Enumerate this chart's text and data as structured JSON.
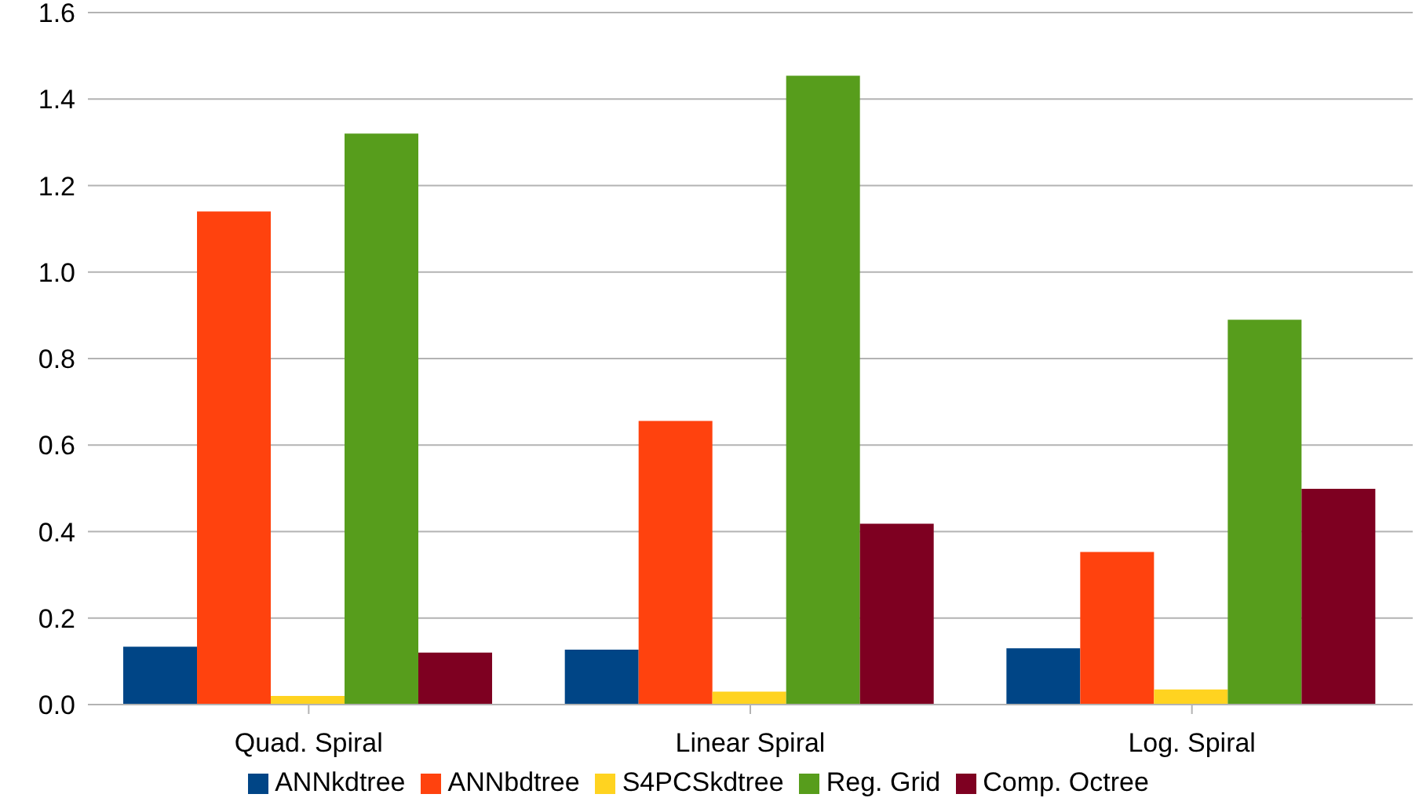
{
  "chart_data": {
    "type": "bar",
    "categories": [
      "Quad. Spiral",
      "Linear Spiral",
      "Log. Spiral"
    ],
    "series": [
      {
        "name": "ANNkdtree",
        "color": "#004586",
        "values": [
          0.134,
          0.127,
          0.13
        ]
      },
      {
        "name": "ANNbdtree",
        "color": "#ff420e",
        "values": [
          1.14,
          0.656,
          0.353
        ]
      },
      {
        "name": "S4PCSkdtree",
        "color": "#ffd320",
        "values": [
          0.02,
          0.03,
          0.035
        ]
      },
      {
        "name": "Reg. Grid",
        "color": "#579d1c",
        "values": [
          1.32,
          1.454,
          0.89
        ]
      },
      {
        "name": "Comp. Octree",
        "color": "#7e0021",
        "values": [
          0.12,
          0.418,
          0.499
        ]
      }
    ],
    "ylim": [
      0,
      1.6
    ],
    "yticks": [
      {
        "value": 0,
        "label": "0.0"
      },
      0.2,
      0.4,
      0.6,
      0.8,
      {
        "value": 1,
        "label": "1.0"
      },
      1.2,
      1.4,
      1.6
    ],
    "grid": "y",
    "legend": "bottom"
  }
}
